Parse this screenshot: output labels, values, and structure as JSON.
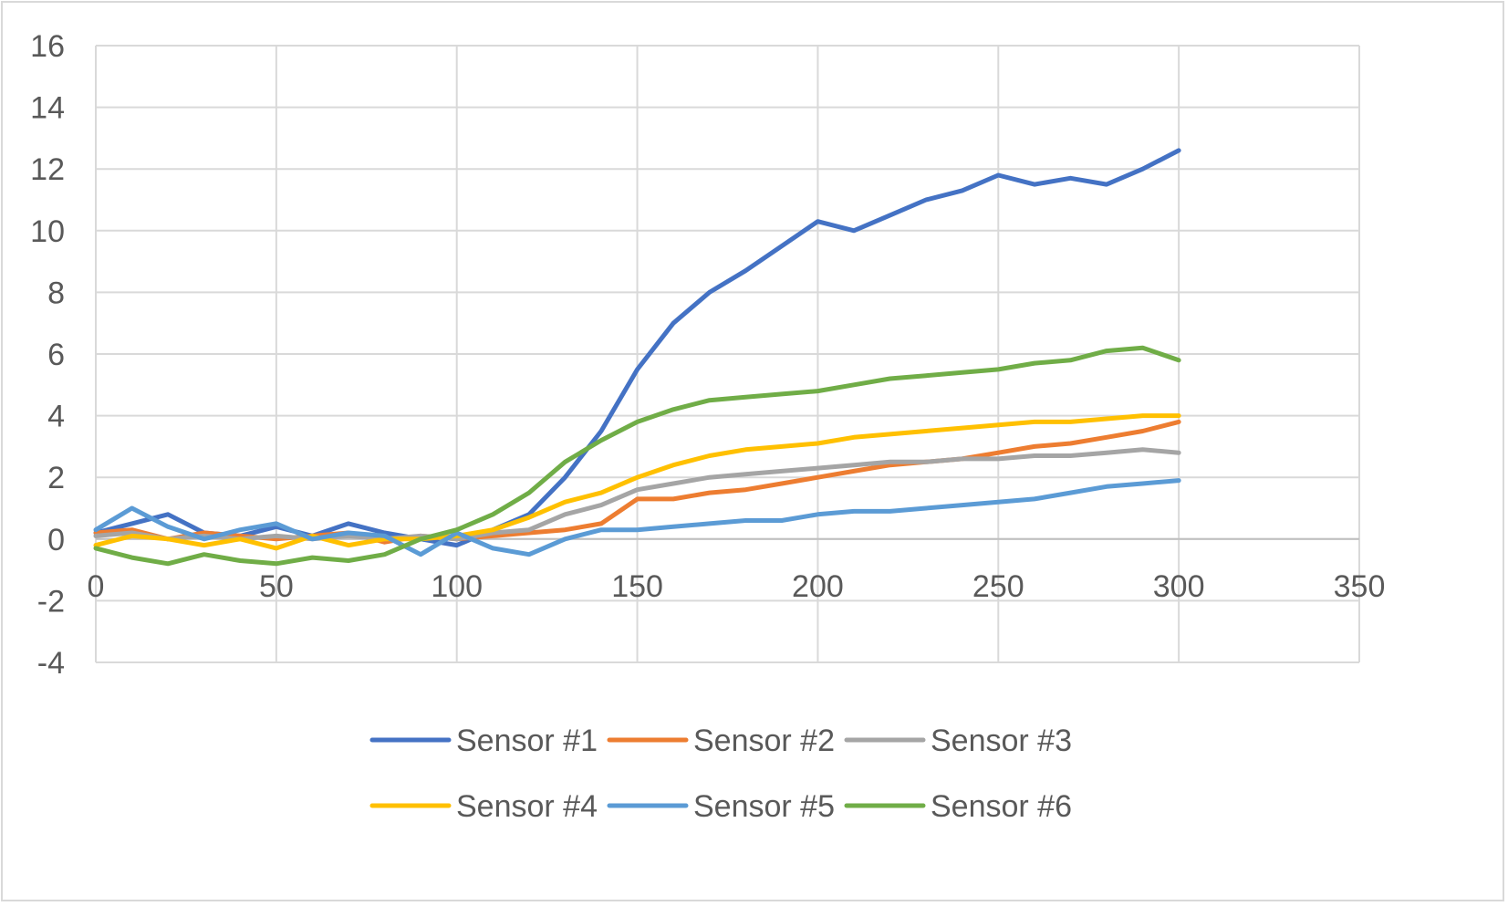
{
  "chart_data": {
    "type": "line",
    "xlim": [
      0,
      350
    ],
    "ylim": [
      -4,
      16
    ],
    "x_ticks": [
      "0",
      "50",
      "100",
      "150",
      "200",
      "250",
      "300",
      "350"
    ],
    "y_ticks": [
      "16",
      "14",
      "12",
      "10",
      "8",
      "6",
      "4",
      "2",
      "0",
      "-2",
      "-4"
    ],
    "grid": true,
    "legend_position": "bottom",
    "x": [
      0,
      10,
      20,
      30,
      40,
      50,
      60,
      70,
      80,
      90,
      100,
      110,
      120,
      130,
      140,
      150,
      160,
      170,
      180,
      190,
      200,
      210,
      220,
      230,
      240,
      250,
      260,
      270,
      280,
      290,
      300
    ],
    "series": [
      {
        "name": "Sensor #1",
        "color": "#4472c4",
        "values": [
          0.2,
          0.5,
          0.8,
          0.2,
          0.1,
          0.4,
          0.1,
          0.5,
          0.2,
          0.0,
          -0.2,
          0.3,
          0.8,
          2.0,
          3.5,
          5.5,
          7.0,
          8.0,
          8.7,
          9.5,
          10.3,
          10.0,
          10.5,
          11.0,
          11.3,
          11.8,
          11.5,
          11.7,
          11.5,
          12.0,
          12.6
        ]
      },
      {
        "name": "Sensor #2",
        "color": "#ed7d31",
        "values": [
          0.2,
          0.3,
          0.0,
          0.2,
          0.1,
          0.0,
          0.1,
          0.2,
          -0.1,
          0.1,
          0.0,
          0.1,
          0.2,
          0.3,
          0.5,
          1.3,
          1.3,
          1.5,
          1.6,
          1.8,
          2.0,
          2.2,
          2.4,
          2.5,
          2.6,
          2.8,
          3.0,
          3.1,
          3.3,
          3.5,
          3.8
        ]
      },
      {
        "name": "Sensor #3",
        "color": "#a5a5a5",
        "values": [
          0.1,
          0.2,
          0.0,
          0.1,
          0.0,
          0.1,
          0.0,
          0.1,
          0.0,
          0.1,
          0.0,
          0.2,
          0.3,
          0.8,
          1.1,
          1.6,
          1.8,
          2.0,
          2.1,
          2.2,
          2.3,
          2.4,
          2.5,
          2.5,
          2.6,
          2.6,
          2.7,
          2.7,
          2.8,
          2.9,
          2.8
        ]
      },
      {
        "name": "Sensor #4",
        "color": "#ffc000",
        "values": [
          -0.2,
          0.1,
          0.0,
          -0.2,
          0.0,
          -0.3,
          0.1,
          -0.2,
          0.0,
          0.0,
          0.1,
          0.3,
          0.7,
          1.2,
          1.5,
          2.0,
          2.4,
          2.7,
          2.9,
          3.0,
          3.1,
          3.3,
          3.4,
          3.5,
          3.6,
          3.7,
          3.8,
          3.8,
          3.9,
          4.0,
          4.0
        ]
      },
      {
        "name": "Sensor #5",
        "color": "#5b9bd5",
        "values": [
          0.3,
          1.0,
          0.4,
          0.0,
          0.3,
          0.5,
          0.0,
          0.2,
          0.1,
          -0.5,
          0.2,
          -0.3,
          -0.5,
          0.0,
          0.3,
          0.3,
          0.4,
          0.5,
          0.6,
          0.6,
          0.8,
          0.9,
          0.9,
          1.0,
          1.1,
          1.2,
          1.3,
          1.5,
          1.7,
          1.8,
          1.9
        ]
      },
      {
        "name": "Sensor #6",
        "color": "#70ad47",
        "values": [
          -0.3,
          -0.6,
          -0.8,
          -0.5,
          -0.7,
          -0.8,
          -0.6,
          -0.7,
          -0.5,
          0.0,
          0.3,
          0.8,
          1.5,
          2.5,
          3.2,
          3.8,
          4.2,
          4.5,
          4.6,
          4.7,
          4.8,
          5.0,
          5.2,
          5.3,
          5.4,
          5.5,
          5.7,
          5.8,
          6.1,
          6.2,
          5.8
        ]
      }
    ]
  }
}
